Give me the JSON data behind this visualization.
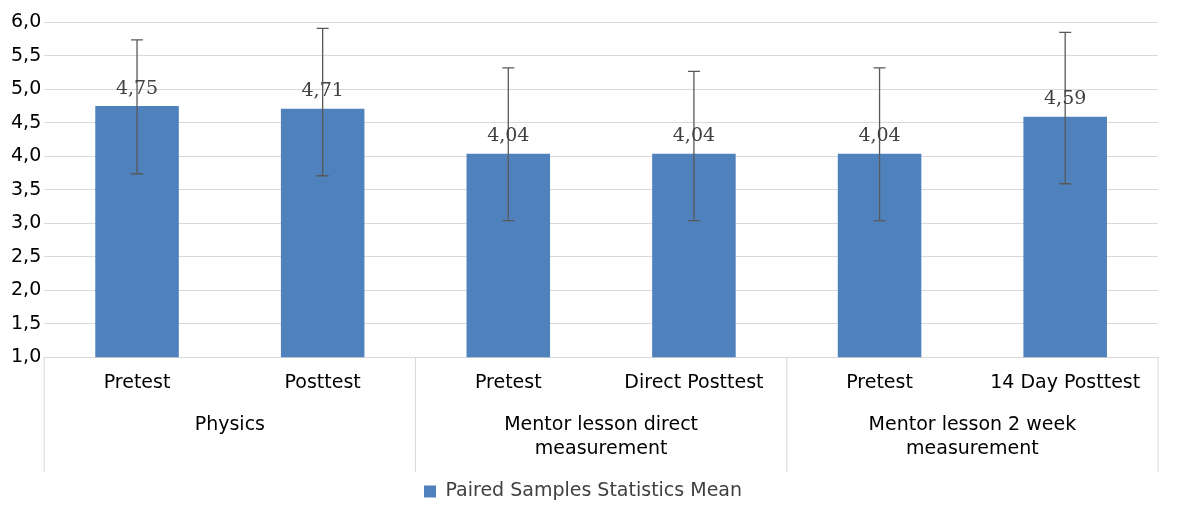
{
  "chart_data": {
    "type": "bar",
    "categories": [
      "Pretest",
      "Posttest",
      "Pretest",
      "Direct Posttest",
      "Pretest",
      "14 Day Posttest"
    ],
    "annotations": [
      "Physics",
      "Mentor lesson direct measurement",
      "Mentor lesson 2 week measurement"
    ],
    "series": [
      {
        "name": "Paired Samples Statistics Mean",
        "color": "#4f81bd",
        "values": [
          4.75,
          4.71,
          4.04,
          4.04,
          4.04,
          4.59
        ],
        "value_labels": [
          "4,75",
          "4,71",
          "4,04",
          "4,04",
          "4,04",
          "4,59"
        ],
        "errors": [
          [
            3.74,
            5.74
          ],
          [
            3.71,
            5.91
          ],
          [
            3.04,
            5.32
          ],
          [
            3.04,
            5.27
          ],
          [
            3.04,
            5.32
          ],
          [
            3.59,
            5.85
          ]
        ]
      }
    ],
    "ylim": [
      1,
      6
    ],
    "yticks": [
      {
        "value": 1,
        "label": "1,0"
      },
      {
        "value": 1.5,
        "label": "1,5"
      },
      {
        "value": 2,
        "label": "2,0"
      },
      {
        "value": 2.5,
        "label": "2,5"
      },
      {
        "value": 3,
        "label": "3,0"
      },
      {
        "value": 3.5,
        "label": "3,5"
      },
      {
        "value": 4,
        "label": "4,0"
      },
      {
        "value": 4.5,
        "label": "4,5"
      },
      {
        "value": 5,
        "label": "5,0"
      },
      {
        "value": 5.5,
        "label": "5,5"
      },
      {
        "value": 6,
        "label": "6,0"
      }
    ],
    "grid": "y",
    "legend": "bottom"
  }
}
